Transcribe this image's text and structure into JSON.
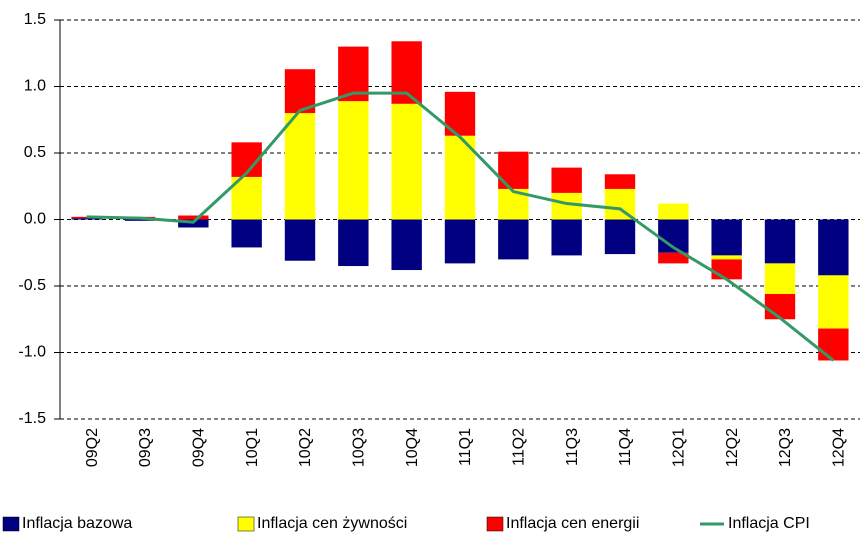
{
  "chart_data": {
    "type": "bar",
    "categories": [
      "09Q2",
      "09Q3",
      "09Q4",
      "10Q1",
      "10Q2",
      "10Q3",
      "10Q4",
      "11Q1",
      "11Q2",
      "11Q3",
      "11Q4",
      "12Q1",
      "12Q2",
      "12Q3",
      "12Q4"
    ],
    "series": [
      {
        "name": "Inflacja bazowa",
        "color": "#000080",
        "values": [
          0.01,
          -0.01,
          -0.06,
          -0.21,
          -0.31,
          -0.35,
          -0.38,
          -0.33,
          -0.3,
          -0.27,
          -0.26,
          -0.25,
          -0.27,
          -0.33,
          -0.42
        ]
      },
      {
        "name": "Inflacja cen żywności",
        "color": "#ffff00",
        "values": [
          0,
          0,
          0,
          0.32,
          0.8,
          0.89,
          0.87,
          0.63,
          0.23,
          0.2,
          0.23,
          0.12,
          -0.03,
          -0.23,
          -0.4
        ]
      },
      {
        "name": "Inflacja cen energii",
        "color": "#ff0000",
        "values": [
          0.01,
          0.02,
          0.03,
          0.26,
          0.33,
          0.41,
          0.47,
          0.33,
          0.28,
          0.19,
          0.11,
          -0.08,
          -0.15,
          -0.19,
          -0.24
        ]
      },
      {
        "name": "Inflacja CPI",
        "color": "#339966",
        "type": "line",
        "values": [
          0.02,
          0.01,
          -0.02,
          0.35,
          0.82,
          0.95,
          0.95,
          0.62,
          0.21,
          0.12,
          0.08,
          -0.21,
          -0.45,
          -0.74,
          -1.06
        ]
      }
    ],
    "ylim": [
      -1.5,
      1.5
    ],
    "yticks": [
      {
        "value": -1.5,
        "label": "-1.5"
      },
      {
        "value": -1,
        "label": "-1.0"
      },
      -0.5,
      {
        "value": 0,
        "label": "0.0"
      },
      0.5,
      {
        "value": 1,
        "label": "1.0"
      },
      1.5
    ],
    "grid": true,
    "stacked": true,
    "legend": "bottom"
  }
}
